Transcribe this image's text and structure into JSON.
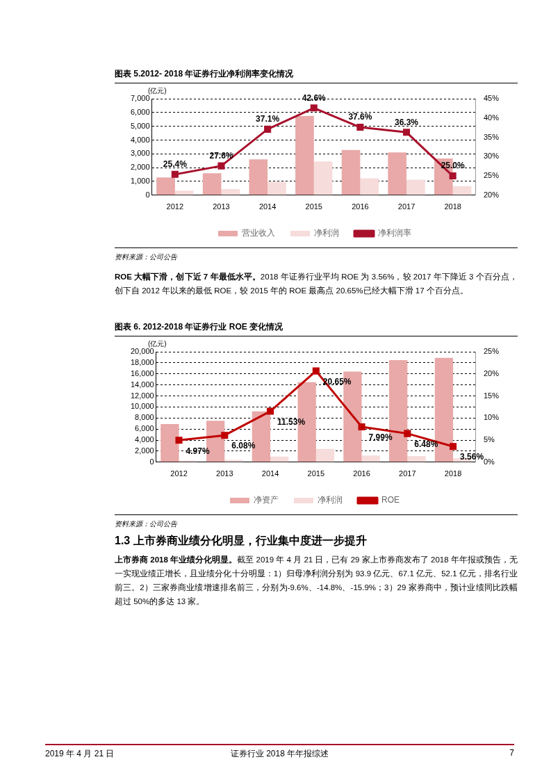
{
  "chart_data": [
    {
      "type": "bar",
      "title": "图表 5.2012- 2018 年证券行业净利润率变化情况",
      "ylabel": "(亿元)",
      "categories": [
        "2012",
        "2013",
        "2014",
        "2015",
        "2016",
        "2017",
        "2018"
      ],
      "series": [
        {
          "name": "营业收入",
          "color": "#e8a9a8",
          "values": [
            1290,
            1590,
            2600,
            5750,
            3280,
            3110,
            2660
          ]
        },
        {
          "name": "净利润",
          "color": "#f6dcdb",
          "values": [
            330,
            440,
            970,
            2450,
            1230,
            1130,
            660
          ]
        },
        {
          "name": "净利润率",
          "type": "line",
          "axis": "y2",
          "color": "#a8102c",
          "values": [
            25.4,
            27.6,
            37.1,
            42.6,
            37.6,
            36.3,
            25.0
          ],
          "value_labels": [
            "25.4%",
            "27.6%",
            "37.1%",
            "42.6%",
            "37.6%",
            "36.3%",
            "25.0%"
          ]
        }
      ],
      "ylim": [
        0,
        7000
      ],
      "yticks": [
        0,
        {
          "value": 1000,
          "label": "1,000"
        },
        {
          "value": 2000,
          "label": "2,000"
        },
        {
          "value": 3000,
          "label": "3,000"
        },
        {
          "value": 4000,
          "label": "4,000"
        },
        {
          "value": 5000,
          "label": "5,000"
        },
        {
          "value": 6000,
          "label": "6,000"
        },
        {
          "value": 7000,
          "label": "7,000"
        }
      ],
      "y2lim": [
        20,
        45
      ],
      "y2ticks": [
        {
          "value": 20,
          "label": "20%"
        },
        {
          "value": 25,
          "label": "25%"
        },
        {
          "value": 30,
          "label": "30%"
        },
        {
          "value": 35,
          "label": "35%"
        },
        {
          "value": 40,
          "label": "40%"
        },
        {
          "value": 45,
          "label": "45%"
        }
      ],
      "grid": "y",
      "legend": "bottom",
      "marker": "square",
      "annotations": [
        "资料来源：公司公告"
      ]
    },
    {
      "type": "other",
      "annotations": [
        "ROE 大幅下滑，创下近 7 年最低水平。",
        "2018 年证券行业平均 ROE 为 3.56%，较 2017 年下降近 3 个百分点，创下自 2012 年以来的最低 ROE，较 2015 年的 ROE 最高点 20.65%已经大幅下滑 17 个百分点。"
      ]
    },
    {
      "type": "bar",
      "title": "图表 6. 2012-2018 年证券行业 ROE 变化情况",
      "ylabel": "(亿元)",
      "categories": [
        "2012",
        "2013",
        "2014",
        "2015",
        "2016",
        "2017",
        "2018"
      ],
      "series": [
        {
          "name": "净资产",
          "color": "#e8a9a8",
          "values": [
            6900,
            7500,
            9200,
            14500,
            16400,
            18500,
            18900
          ]
        },
        {
          "name": "净利润",
          "color": "#f6dcdb",
          "values": [
            300,
            400,
            1000,
            2400,
            1200,
            1100,
            700
          ]
        },
        {
          "name": "ROE",
          "type": "line",
          "axis": "y2",
          "color": "#c00000",
          "values": [
            4.97,
            6.08,
            11.53,
            20.65,
            7.99,
            6.48,
            3.56
          ],
          "value_labels": [
            "4.97%",
            "6.08%",
            "11.53%",
            "20.65%",
            "7.99%",
            "6.48%",
            "3.56%"
          ]
        }
      ],
      "ylim": [
        0,
        20000
      ],
      "yticks": [
        0,
        {
          "value": 2000,
          "label": "2,000"
        },
        {
          "value": 4000,
          "label": "4,000"
        },
        {
          "value": 6000,
          "label": "6,000"
        },
        {
          "value": 8000,
          "label": "8,000"
        },
        {
          "value": 10000,
          "label": "10,000"
        },
        {
          "value": 12000,
          "label": "12,000"
        },
        {
          "value": 14000,
          "label": "14,000"
        },
        {
          "value": 16000,
          "label": "16,000"
        },
        {
          "value": 18000,
          "label": "18,000"
        },
        {
          "value": 20000,
          "label": "20,000"
        }
      ],
      "y2lim": [
        0,
        25
      ],
      "y2ticks": [
        {
          "value": 0,
          "label": "0%"
        },
        {
          "value": 5,
          "label": "5%"
        },
        {
          "value": 10,
          "label": "10%"
        },
        {
          "value": 15,
          "label": "15%"
        },
        {
          "value": 20,
          "label": "20%"
        },
        {
          "value": 25,
          "label": "25%"
        }
      ],
      "grid": "y",
      "legend": "bottom",
      "marker": "square",
      "annotations": [
        "资料来源：公司公告"
      ]
    },
    {
      "type": "other",
      "title": "1.3 上市券商业绩分化明显，行业集中度进一步提升",
      "annotations": [
        "上市券商 2018 年业绩分化明显。",
        "截至 2019 年 4 月 21 日，已有 29 家上市券商发布了 2018 年年报或预告，无一实现业绩正增长，且业绩分化十分明显：1）归母净利润分别为 93.9 亿元、67.1 亿元、52.1 亿元，排名行业前三。2）三家券商业绩增速排名前三，分别为-9.6%、-14.8%、-15.9%；3）29 家券商中，预计业绩同比跌幅超过 50%的多达 13 家。",
        "2019 年 4 月 21 日",
        "证券行业 2018 年年报综述",
        "7"
      ]
    }
  ]
}
